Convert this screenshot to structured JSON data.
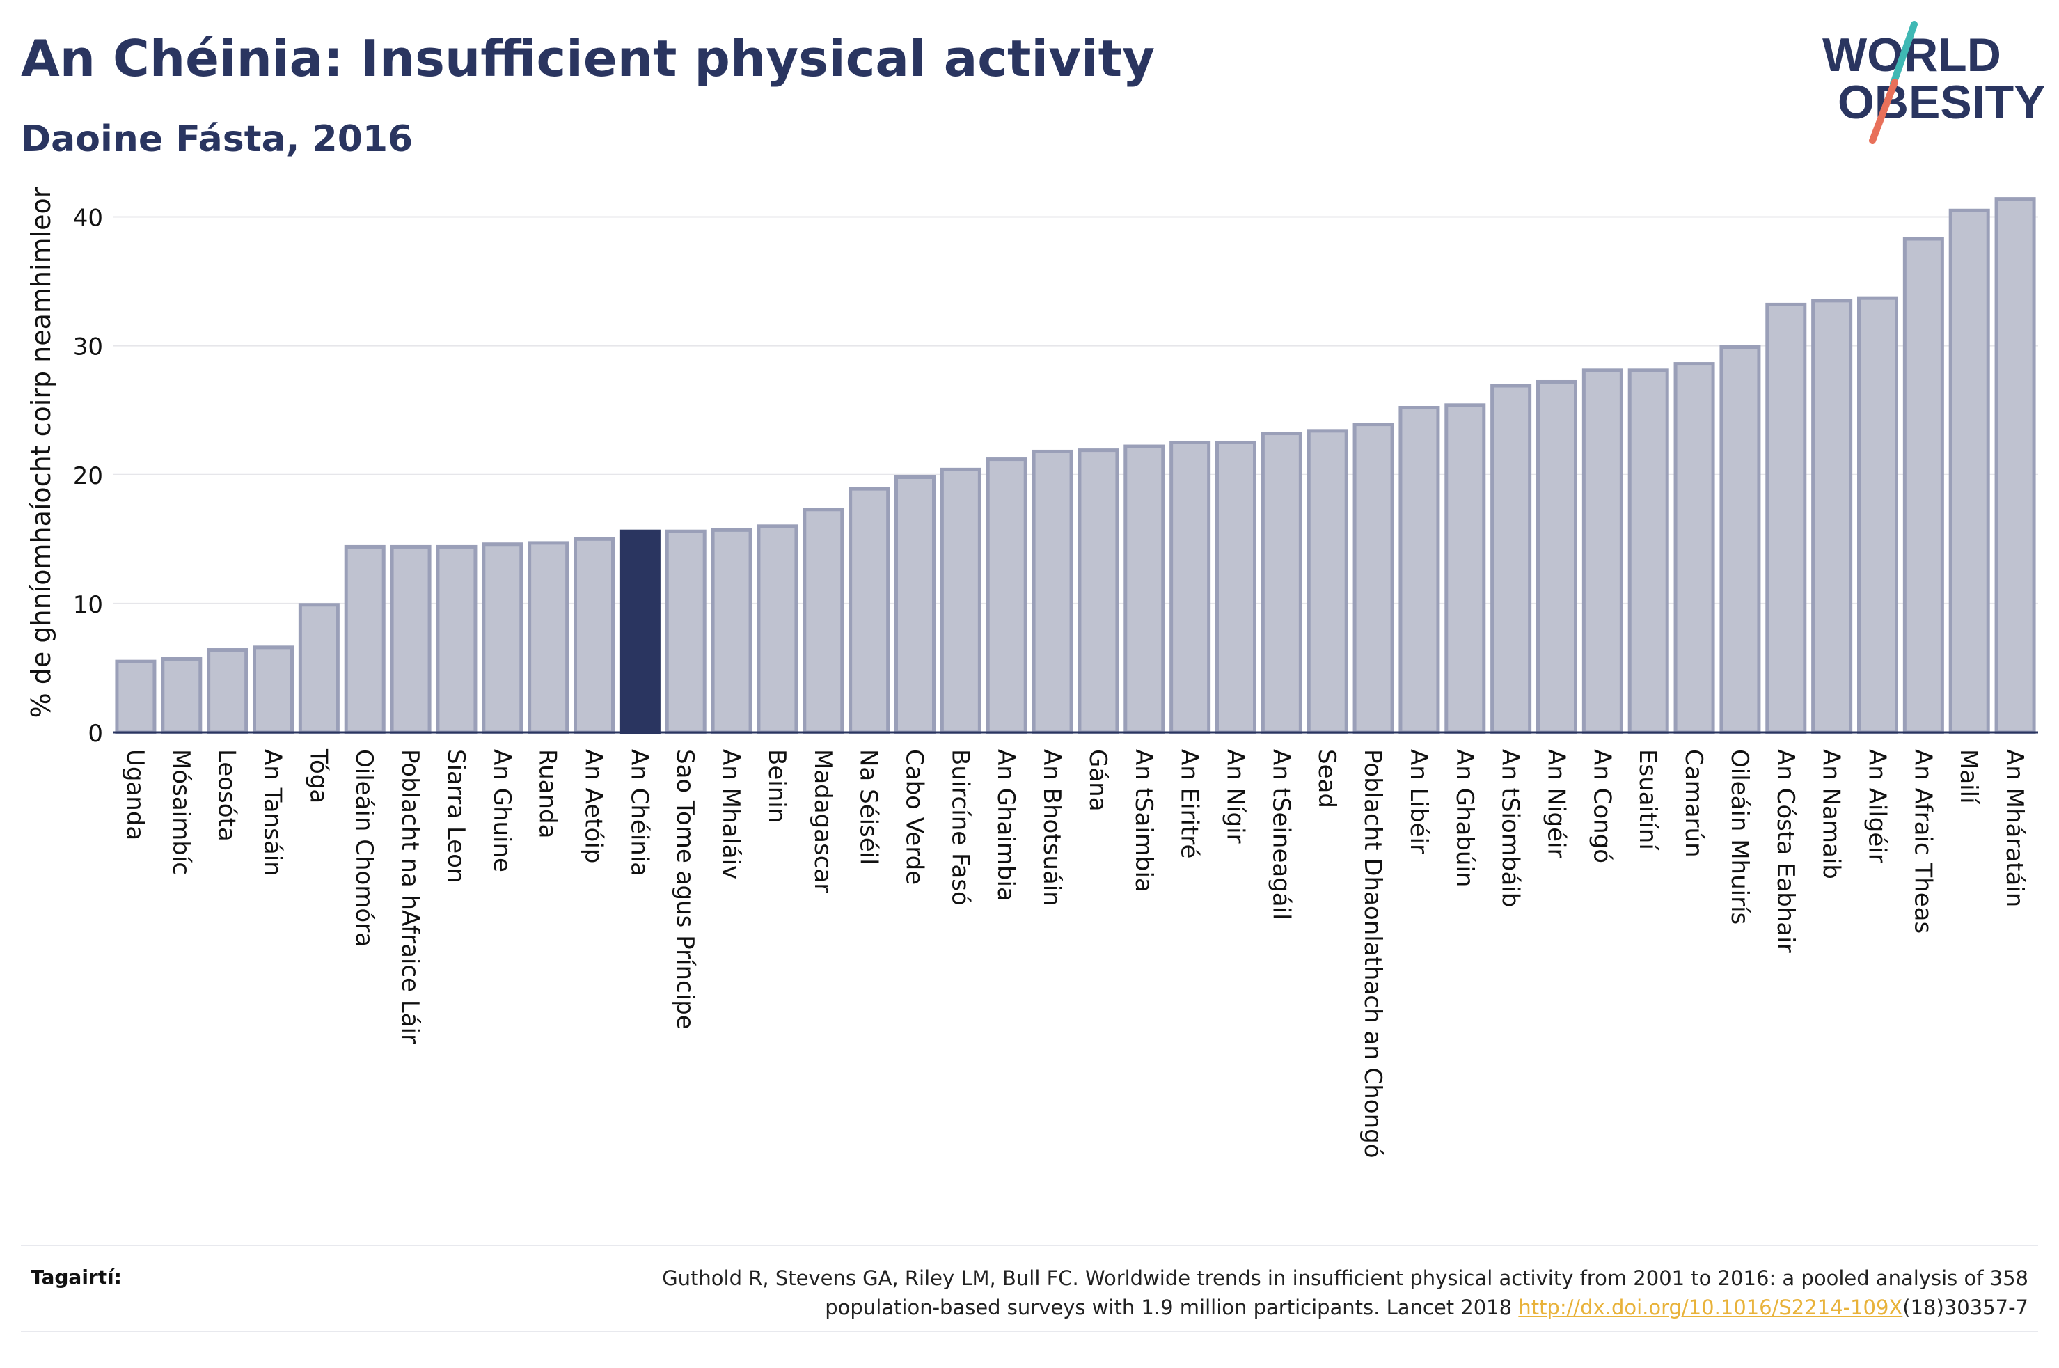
{
  "header": {
    "title": "An Chéinia: Insufficient physical activity",
    "subtitle": "Daoine Fásta, 2016"
  },
  "logo": {
    "line1": "WORLD",
    "line2": "OBESITY"
  },
  "references": {
    "label": "Tagairtí:",
    "text_line1": "Guthold R, Stevens GA, Riley LM, Bull FC. Worldwide trends in insufficient physical activity from 2001 to 2016: a pooled analysis of 358",
    "text_line2_prefix": "population-based surveys with 1.9 million participants. Lancet 2018 ",
    "link_text": "http://dx.doi.org/10.1016/S2214-109X",
    "text_line2_suffix": "(18)30357-7"
  },
  "colors": {
    "highlight": "#2a3560",
    "bar_fill": "#bfc2d0",
    "bar_stroke": "#9a9fb8",
    "grid": "#e6e6ea",
    "logo_teal": "#3fb8b4",
    "logo_coral": "#e8705a"
  },
  "chart_data": {
    "type": "bar",
    "ylabel": "% de ghníomhaíocht coirp neamhimleor",
    "ylim": [
      0,
      43
    ],
    "yticks": [
      0,
      10,
      20,
      30,
      40
    ],
    "grid": true,
    "highlight": "An Chéinia",
    "categories": [
      "Uganda",
      "Mósaimbíc",
      "Leosóta",
      "An Tansáin",
      "Tóga",
      "Oileáin Chomóra",
      "Poblacht na hAfraice Láir",
      "Siarra Leon",
      "An Ghuine",
      "Ruanda",
      "An Aetóip",
      "An Chéinia",
      "Sao Tome agus Príncipe",
      "An Mhaláiv",
      "Beinin",
      "Madagascar",
      "Na Séiséil",
      "Cabo Verde",
      "Buircíne Fasó",
      "An Ghaimbia",
      "An Bhotsuáin",
      "Gána",
      "An tSaimbia",
      "An Eiritré",
      "An Nígir",
      "An tSeineagáil",
      "Sead",
      "Poblacht Dhaonlathach an Chongó",
      "An Libéir",
      "An Ghabúin",
      "An tSiombáib",
      "An Nigéir",
      "An Congó",
      "Esuaitíní",
      "Camarún",
      "Oileáin Mhuirís",
      "An Cósta Eabhair",
      "An Namaib",
      "An Ailgéir",
      "An Afraic Theas",
      "Mailí",
      "An Mháratáin"
    ],
    "values": [
      5.5,
      5.7,
      6.4,
      6.6,
      9.9,
      14.4,
      14.4,
      14.4,
      14.6,
      14.7,
      15.0,
      15.6,
      15.6,
      15.7,
      16.0,
      17.3,
      18.9,
      19.8,
      20.4,
      21.2,
      21.8,
      21.9,
      22.2,
      22.5,
      22.5,
      23.2,
      23.4,
      23.9,
      25.2,
      25.4,
      26.9,
      27.2,
      28.1,
      28.1,
      28.6,
      29.9,
      33.2,
      33.5,
      33.7,
      38.3,
      40.5,
      41.4
    ]
  }
}
